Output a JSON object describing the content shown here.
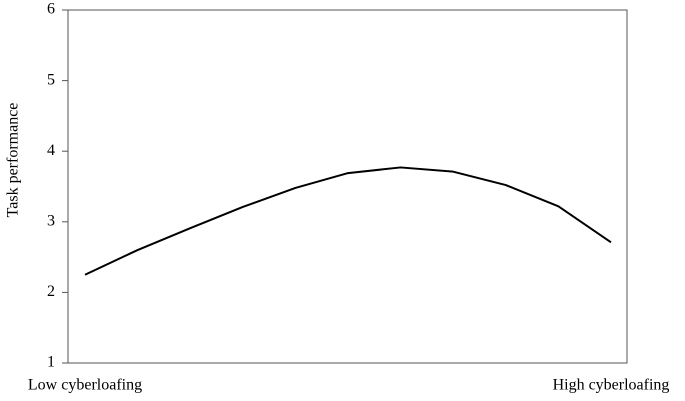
{
  "chart_data": {
    "type": "line",
    "ylabel": "Task performance",
    "categories": [
      "Low cyberloafing",
      null,
      null,
      null,
      null,
      null,
      null,
      null,
      null,
      null,
      "High cyberloafing"
    ],
    "values": [
      2.25,
      2.6,
      2.91,
      3.21,
      3.48,
      3.69,
      3.77,
      3.71,
      3.52,
      3.22,
      2.71
    ],
    "color": "#000000",
    "ylim": [
      1,
      6
    ],
    "yticks": [
      1,
      2,
      3,
      4,
      5,
      6
    ],
    "grid": false
  }
}
